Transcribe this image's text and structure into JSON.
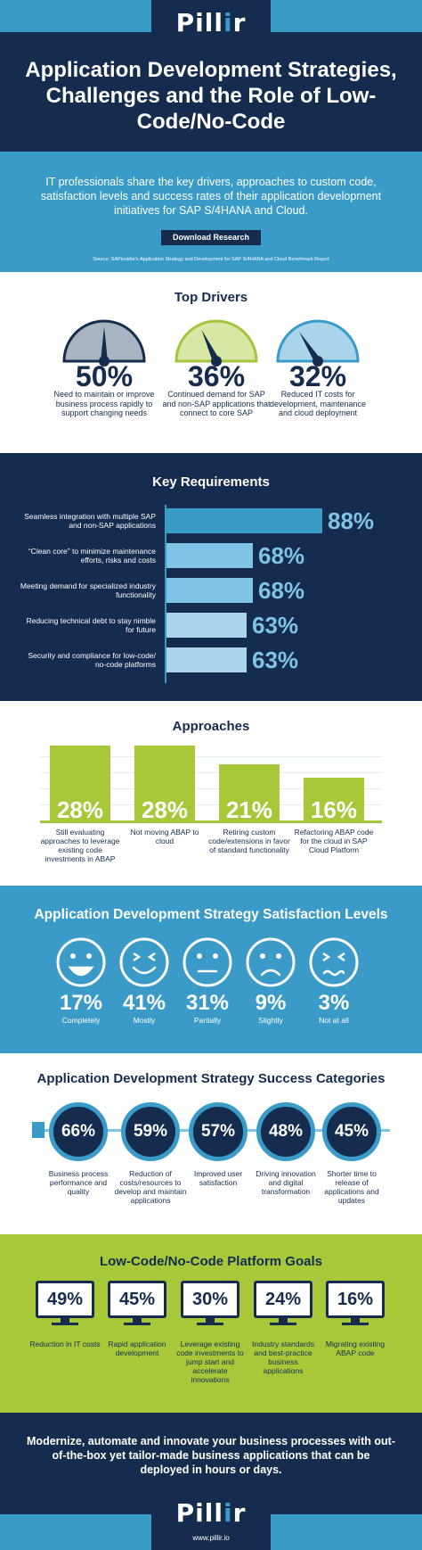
{
  "brand": {
    "logo_text_1": "Pill",
    "logo_text_2": "i",
    "logo_text_3": "r",
    "url": "www.pillir.io"
  },
  "header": {
    "title": "Application Development Strategies, Challenges and the Role of Low-Code/No-Code"
  },
  "intro": {
    "text": "IT professionals share the key drivers, approaches to custom code, satisfaction levels and success rates of their application development initiatives for SAP S/4HANA and Cloud.",
    "button_label": "Download Research",
    "source_text": "Source: SAPinsider's Application Strategy and Development for SAP S/4HANA and Cloud Benchmark Report"
  },
  "top_drivers": {
    "title": "Top Drivers",
    "items": [
      {
        "value": "50%",
        "label": "Need to maintain or improve business process rapidly to support changing needs",
        "fraction": 0.5,
        "color": "#152c4f",
        "fill": "#a9b4c2"
      },
      {
        "value": "36%",
        "label": "Continued demand for SAP and non-SAP applications that connect to core SAP",
        "fraction": 0.36,
        "color": "#a3c43b",
        "fill": "#d8e8a4"
      },
      {
        "value": "32%",
        "label": "Reduced IT costs for development, maintenance and cloud deployment",
        "fraction": 0.32,
        "color": "#3a9bc9",
        "fill": "#a9d4ea"
      }
    ]
  },
  "key_requirements": {
    "title": "Key Requirements",
    "items": [
      {
        "label": "Seamless integration with multiple SAP and non-SAP applications",
        "value": "88%",
        "pct": 88
      },
      {
        "label": "“Clean core” to minimize maintenance efforts, risks and costs",
        "value": "68%",
        "pct": 68
      },
      {
        "label": "Meeting demand for specialized industry functionality",
        "value": "68%",
        "pct": 68
      },
      {
        "label": "Reducing technical debt to stay nimble for future",
        "value": "63%",
        "pct": 63
      },
      {
        "label": "Security and compliance for low-code/ no-code platforms",
        "value": "63%",
        "pct": 63
      }
    ]
  },
  "approaches": {
    "title": "Approaches",
    "items": [
      {
        "value": "28%",
        "pct": 28,
        "label": "Still evaluating approaches to leverage existing code investments in ABAP"
      },
      {
        "value": "28%",
        "pct": 28,
        "label": "Not moving ABAP to cloud"
      },
      {
        "value": "21%",
        "pct": 21,
        "label": "Retiring custom code/extensions in favor of standard functionality"
      },
      {
        "value": "16%",
        "pct": 16,
        "label": "Refactoring ABAP code for the cloud in SAP Cloud Platform"
      }
    ]
  },
  "satisfaction": {
    "title": "Application Development Strategy Satisfaction Levels",
    "items": [
      {
        "value": "17%",
        "label": "Completely",
        "icon": "big-smile-face-icon"
      },
      {
        "value": "41%",
        "label": "Mostly",
        "icon": "grin-face-icon"
      },
      {
        "value": "31%",
        "label": "Partially",
        "icon": "neutral-face-icon"
      },
      {
        "value": "9%",
        "label": "Slightly",
        "icon": "sad-face-icon"
      },
      {
        "value": "3%",
        "label": "Not at all",
        "icon": "upset-face-icon"
      }
    ]
  },
  "success": {
    "title": "Application Development Strategy Success Categories",
    "items": [
      {
        "value": "66%",
        "label": "Business process performance and quality"
      },
      {
        "value": "59%",
        "label": "Reduction of costs/resources to develop and maintain applications"
      },
      {
        "value": "57%",
        "label": "Improved user satisfaction"
      },
      {
        "value": "48%",
        "label": "Driving innovation and digital transformation"
      },
      {
        "value": "45%",
        "label": "Shorter time to release of applications and updates"
      }
    ]
  },
  "goals": {
    "title": "Low-Code/No-Code Platform Goals",
    "items": [
      {
        "value": "49%",
        "label": "Reduction in IT costs"
      },
      {
        "value": "45%",
        "label": "Rapid application development"
      },
      {
        "value": "30%",
        "label": "Leverage existing code investments to jump start and accelerate innovations"
      },
      {
        "value": "24%",
        "label": "Industry standards and best-practice business applications"
      },
      {
        "value": "16%",
        "label": "Migrating existing ABAP code"
      }
    ]
  },
  "footer": {
    "text": "Modernize, automate and innovate your business processes with out-of-the-box yet tailor-made business applications that can be deployed in hours or days."
  },
  "colors": {
    "navy": "#152c4f",
    "blue": "#3a9bc9",
    "light_blue": "#7fc3e6",
    "green": "#a8c83a"
  }
}
